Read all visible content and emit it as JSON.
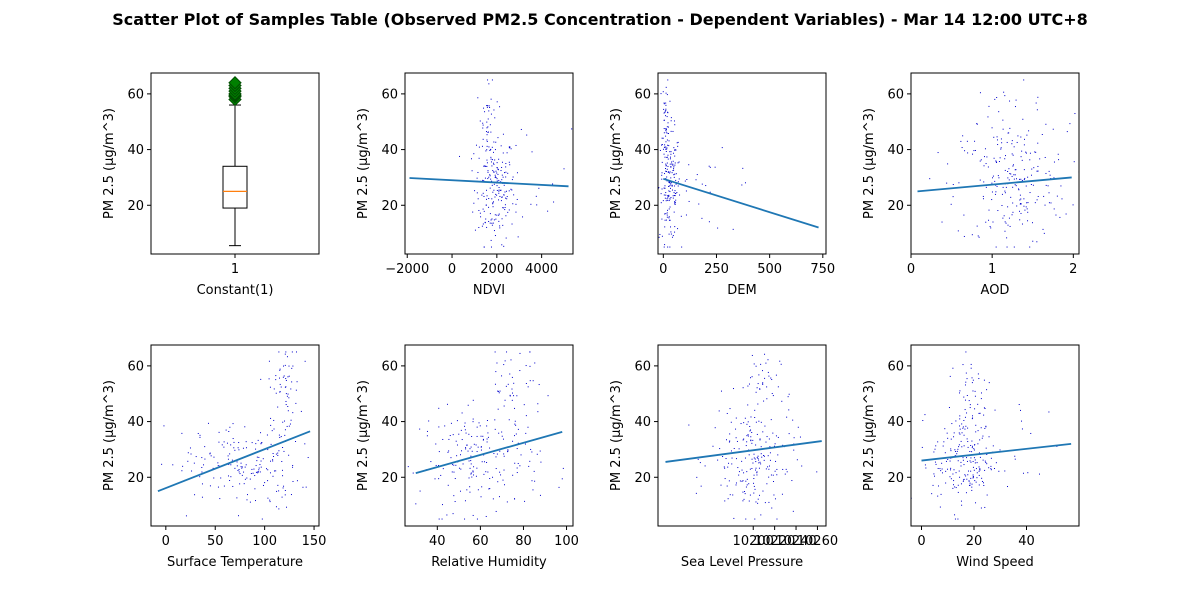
{
  "figure": {
    "title": "Scatter Plot of Samples Table (Observed PM2.5 Concentration - Dependent Variables) - Mar 14 12:00 UTC+8"
  },
  "colors": {
    "points": "#0000cc",
    "trend": "#1f77b4",
    "median": "#ff7f0e",
    "flier": "#008000",
    "flier_edge": "#004d00"
  },
  "chart_data": [
    {
      "type": "box",
      "xlabel": "Constant(1)",
      "ylabel": "PM 2.5 (µg/m^3)",
      "xticks": [
        "1"
      ],
      "yticks": [
        20,
        40,
        60
      ],
      "ylim": [
        2.5,
        67.5
      ],
      "box": {
        "whisker_low": 5.5,
        "q1": 19,
        "median": 25,
        "q3": 34,
        "whisker_high": 56
      },
      "fliers": [
        58,
        59,
        59.5,
        60,
        61,
        62,
        63,
        64
      ]
    },
    {
      "type": "scatter",
      "xlabel": "NDVI",
      "ylabel": "PM 2.5 (µg/m^3)",
      "xlim": [
        -2100,
        5400
      ],
      "ylim": [
        2.5,
        67.5
      ],
      "xticks": [
        -2000,
        0,
        2000,
        4000
      ],
      "yticks": [
        20,
        40,
        60
      ],
      "trend": {
        "x": [
          -1900,
          5200
        ],
        "y": [
          29.8,
          26.8
        ]
      },
      "cloud": [
        {
          "cx": 1900,
          "sx": 450,
          "cy": 26,
          "sy": 10,
          "n": 190
        },
        {
          "cx": 1600,
          "sx": 250,
          "cy": 48,
          "sy": 9,
          "n": 45
        },
        {
          "cx": 3500,
          "sx": 900,
          "cy": 30,
          "sy": 10,
          "n": 25
        }
      ]
    },
    {
      "type": "scatter",
      "xlabel": "DEM",
      "ylabel": "PM 2.5 (µg/m^3)",
      "xlim": [
        -25,
        765
      ],
      "ylim": [
        2.5,
        67.5
      ],
      "xticks": [
        0,
        250,
        500,
        750
      ],
      "yticks": [
        20,
        40,
        60
      ],
      "trend": {
        "x": [
          0,
          730
        ],
        "y": [
          29.5,
          12
        ]
      },
      "cloud": [
        {
          "cx": 30,
          "sx": 25,
          "cy": 27,
          "sy": 10,
          "n": 180
        },
        {
          "cx": 12,
          "sx": 8,
          "cy": 52,
          "sy": 8,
          "n": 40
        },
        {
          "cx": 200,
          "sx": 130,
          "cy": 24,
          "sy": 7,
          "n": 30
        }
      ]
    },
    {
      "type": "scatter",
      "xlabel": "AOD",
      "ylabel": "PM 2.5 (µg/m^3)",
      "xlim": [
        0,
        2.07
      ],
      "ylim": [
        2.5,
        67.5
      ],
      "xticks": [
        0,
        1,
        2
      ],
      "yticks": [
        20,
        40,
        60
      ],
      "trend": {
        "x": [
          0.08,
          1.98
        ],
        "y": [
          25,
          30
        ]
      },
      "cloud": [
        {
          "cx": 1.25,
          "sx": 0.35,
          "cy": 27,
          "sy": 11,
          "n": 210
        },
        {
          "cx": 1.1,
          "sx": 0.45,
          "cy": 50,
          "sy": 8,
          "n": 40
        }
      ]
    },
    {
      "type": "scatter",
      "xlabel": "Surface Temperature",
      "ylabel": "PM 2.5 (µg/m^3)",
      "xlim": [
        -15,
        155
      ],
      "ylim": [
        2.5,
        67.5
      ],
      "xticks": [
        0,
        50,
        100,
        150
      ],
      "yticks": [
        20,
        40,
        60
      ],
      "trend": {
        "x": [
          -8,
          146
        ],
        "y": [
          15,
          36.5
        ]
      },
      "cloud": [
        {
          "cx": 85,
          "sx": 25,
          "cy": 24,
          "sy": 8,
          "n": 170
        },
        {
          "cx": 120,
          "sx": 8,
          "cy": 52,
          "sy": 8,
          "n": 60
        },
        {
          "cx": 30,
          "sx": 20,
          "cy": 25,
          "sy": 6,
          "n": 25
        }
      ]
    },
    {
      "type": "scatter",
      "xlabel": "Relative Humidity",
      "ylabel": "PM 2.5 (µg/m^3)",
      "xlim": [
        25,
        103
      ],
      "ylim": [
        2.5,
        67.5
      ],
      "xticks": [
        40,
        60,
        80,
        100
      ],
      "yticks": [
        20,
        40,
        60
      ],
      "trend": {
        "x": [
          30,
          98
        ],
        "y": [
          21.5,
          36.3
        ]
      },
      "cloud": [
        {
          "cx": 60,
          "sx": 14,
          "cy": 26,
          "sy": 9,
          "n": 200
        },
        {
          "cx": 75,
          "sx": 7,
          "cy": 52,
          "sy": 8,
          "n": 50
        }
      ]
    },
    {
      "type": "scatter",
      "xlabel": "Sea Level Pressure",
      "ylabel": "PM 2.5 (µg/m^3)",
      "xlim": [
        10111,
        10268
      ],
      "ylim": [
        2.5,
        67.5
      ],
      "xticks": [
        10200,
        10220,
        10240,
        10260
      ],
      "xtick_labels": [
        "10200",
        "10220",
        "10240",
        "10260"
      ],
      "yticks": [
        20,
        40,
        60
      ],
      "trend": {
        "x": [
          10118,
          10264
        ],
        "y": [
          25.5,
          33
        ]
      },
      "cloud": [
        {
          "cx": 10200,
          "sx": 20,
          "cy": 26,
          "sy": 10,
          "n": 200
        },
        {
          "cx": 10205,
          "sx": 10,
          "cy": 52,
          "sy": 8,
          "n": 45
        }
      ]
    },
    {
      "type": "scatter",
      "xlabel": "Wind Speed",
      "ylabel": "PM 2.5 (µg/m^3)",
      "xlim": [
        -4,
        60
      ],
      "ylim": [
        2.5,
        67.5
      ],
      "xticks": [
        0,
        20,
        40
      ],
      "yticks": [
        20,
        40,
        60
      ],
      "trend": {
        "x": [
          0,
          57
        ],
        "y": [
          26,
          32
        ]
      },
      "cloud": [
        {
          "cx": 16,
          "sx": 6,
          "cy": 26,
          "sy": 9,
          "n": 210
        },
        {
          "cx": 19,
          "sx": 4,
          "cy": 52,
          "sy": 8,
          "n": 40
        },
        {
          "cx": 40,
          "sx": 8,
          "cy": 28,
          "sy": 12,
          "n": 15
        }
      ]
    }
  ]
}
